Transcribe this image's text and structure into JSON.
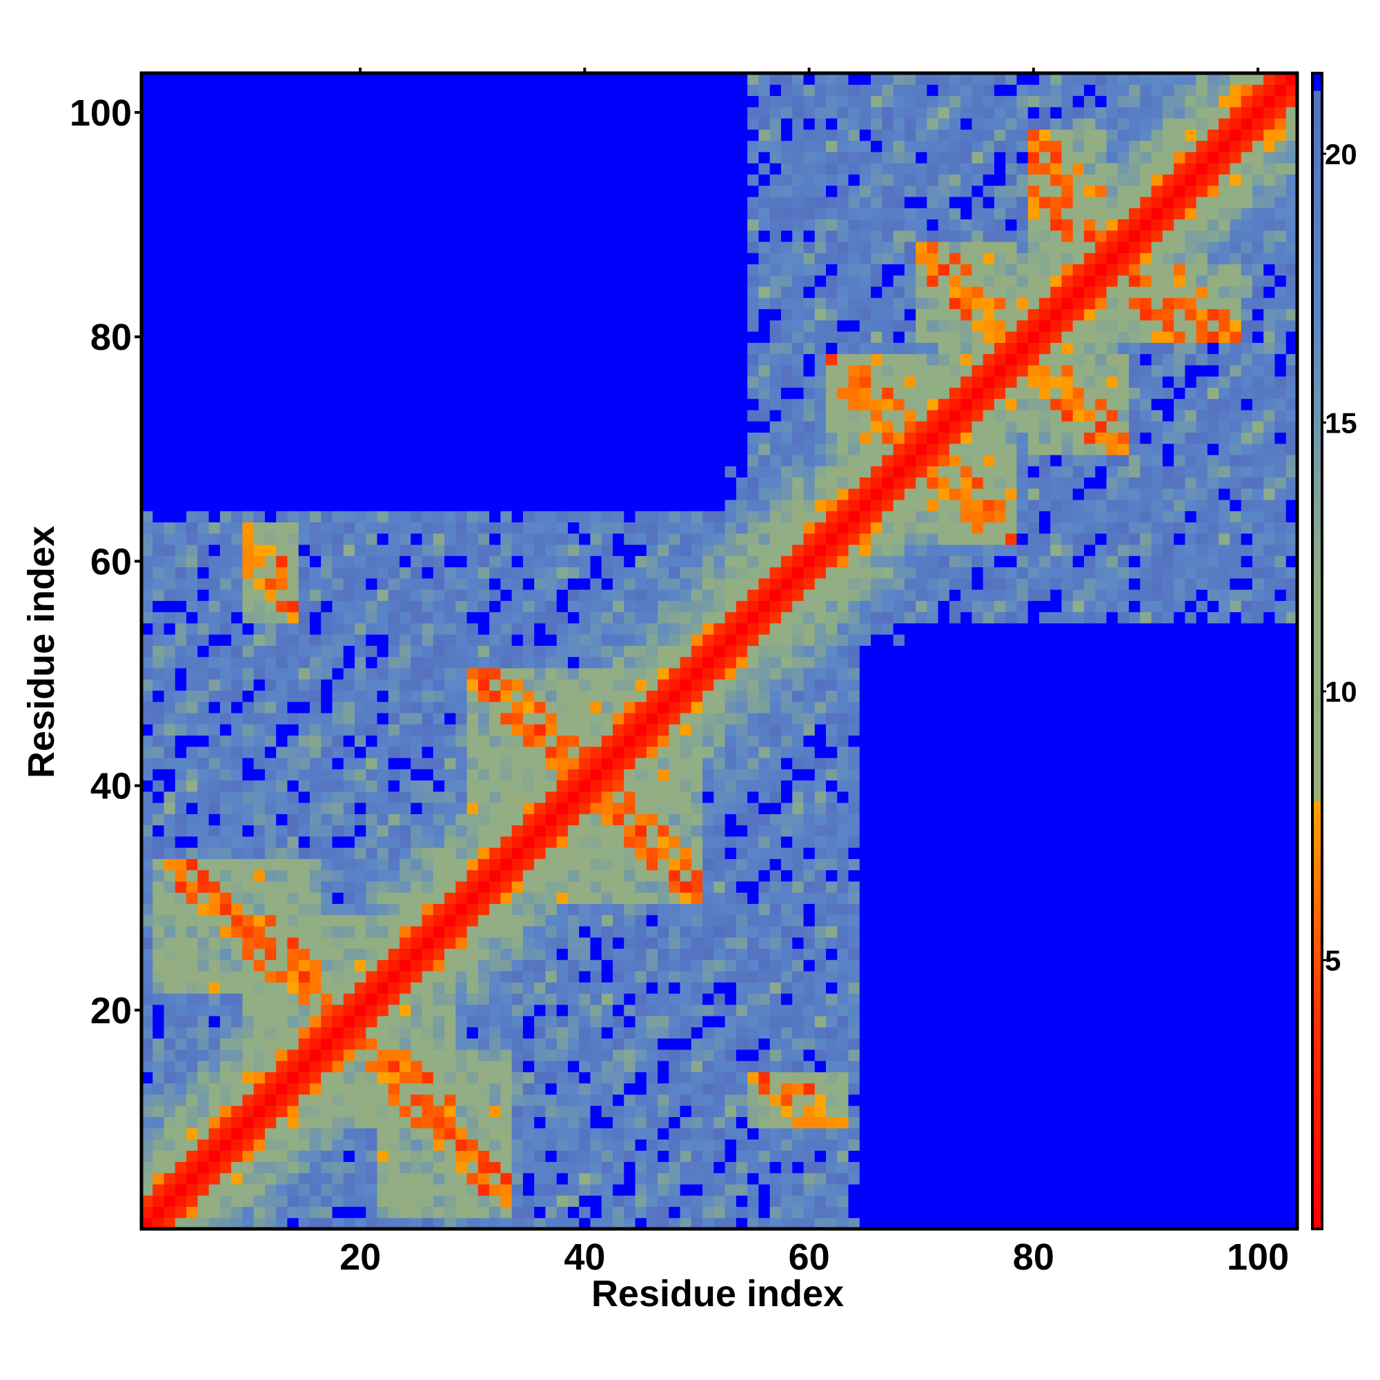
{
  "chart_data": {
    "type": "heatmap",
    "title": "",
    "xlabel": "Residue index",
    "ylabel": "Residue index",
    "n_residues": 103,
    "xlim": [
      0.5,
      103.5
    ],
    "ylim": [
      0.5,
      103.5
    ],
    "x_ticks": [
      20,
      40,
      60,
      80,
      100
    ],
    "y_ticks": [
      20,
      40,
      60,
      80,
      100
    ],
    "colorbar": {
      "range": [
        0,
        21.5
      ],
      "ticks": [
        5,
        10,
        15,
        20
      ],
      "stops": [
        {
          "value": 0,
          "color": "#ff0000"
        },
        {
          "value": 4,
          "color": "#ff3300"
        },
        {
          "value": 8,
          "color": "#ffa500"
        },
        {
          "value": 8.01,
          "color": "#96ad80"
        },
        {
          "value": 12,
          "color": "#90ae86"
        },
        {
          "value": 17,
          "color": "#5b86c8"
        },
        {
          "value": 21.5,
          "color": "#5570c0"
        }
      ],
      "cutoff_color": "#0000ff"
    },
    "contact_clusters": [
      {
        "i_range": [
          20,
          35
        ],
        "j_range": [
          20,
          35
        ],
        "type": "diagonal-helix"
      },
      {
        "i_range": [
          36,
          50
        ],
        "j_range": [
          30,
          46
        ],
        "type": "off-diagonal"
      },
      {
        "i_range": [
          10,
          20
        ],
        "j_range": [
          18,
          28
        ],
        "type": "off-diagonal"
      },
      {
        "i_range": [
          22,
          33
        ],
        "j_range": [
          2,
          16
        ],
        "type": "off-diagonal"
      },
      {
        "i_range": [
          55,
          63
        ],
        "j_range": [
          10,
          14
        ],
        "type": "off-diagonal"
      },
      {
        "i_range": [
          62,
          70
        ],
        "j_range": [
          70,
          78
        ],
        "type": "off-diagonal"
      },
      {
        "i_range": [
          70,
          78
        ],
        "j_range": [
          80,
          88
        ],
        "type": "off-diagonal"
      },
      {
        "i_range": [
          80,
          86
        ],
        "j_range": [
          90,
          98
        ],
        "type": "off-diagonal"
      },
      {
        "i_range": [
          86,
          95
        ],
        "j_range": [
          80,
          86
        ],
        "type": "off-diagonal"
      }
    ],
    "cutoff_angstrom": 21.5
  }
}
